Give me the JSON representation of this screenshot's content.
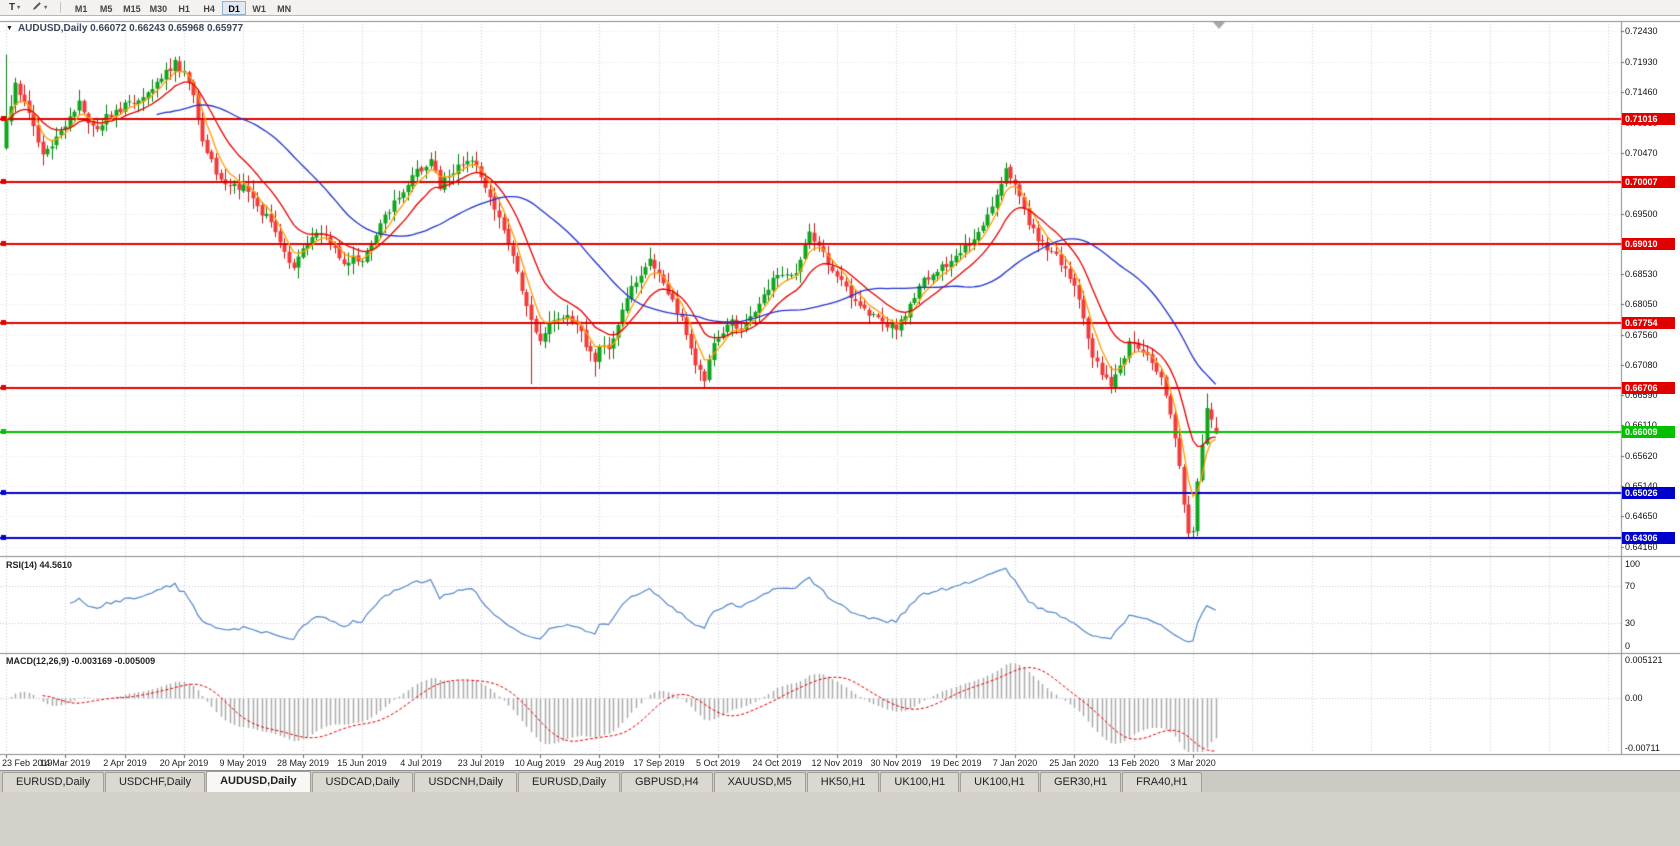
{
  "toolbar": {
    "text_tool": "T",
    "timeframes": [
      "M1",
      "M5",
      "M15",
      "M30",
      "H1",
      "H4",
      "D1",
      "W1",
      "MN"
    ],
    "active_timeframe": "D1"
  },
  "chart": {
    "title_line": "AUDUSD,Daily 0.66072 0.66243 0.65968 0.65977",
    "price_axis_labels": [
      "0.72430",
      "0.71930",
      "0.71460",
      "0.70960",
      "0.70470",
      "0.69990",
      "0.69500",
      "0.69020",
      "0.68530",
      "0.68050",
      "0.67560",
      "0.67080",
      "0.66590",
      "0.66110",
      "0.65620",
      "0.65140",
      "0.64650",
      "0.64160"
    ],
    "colors": {
      "bg": "#ffffff",
      "up": "#10a51c",
      "up_border": "#0b7d13",
      "down": "#f23b3b",
      "down_border": "#c51d1d",
      "grid_v": "#cfcfcf",
      "grid_h": "#e8e8e8",
      "frame": "#8c8c8c",
      "panel_level": "#c6c6dd"
    },
    "levels": [
      {
        "price": 0.71016,
        "label": "0.71016",
        "color": "#e00000"
      },
      {
        "price": 0.70007,
        "label": "0.70007",
        "color": "#e00000"
      },
      {
        "price": 0.6901,
        "label": "0.69010",
        "color": "#e00000"
      },
      {
        "price": 0.67754,
        "label": "0.67754",
        "color": "#e00000"
      },
      {
        "price": 0.66706,
        "label": "0.66706",
        "color": "#e00000"
      },
      {
        "price": 0.66009,
        "label": "0.66009",
        "color": "#00c000"
      },
      {
        "price": 0.65026,
        "label": "0.65026",
        "color": "#0000cc"
      },
      {
        "price": 0.64306,
        "label": "0.64306",
        "color": "#0000cc"
      }
    ]
  },
  "chart_data": {
    "type": "candlestick",
    "symbol": "AUDUSD",
    "timeframe": "Daily",
    "last_candle": {
      "open": 0.66072,
      "high": 0.66243,
      "low": 0.65968,
      "close": 0.65977
    },
    "y_range": [
      0.6416,
      0.7243
    ],
    "bar_count": 266,
    "bars_per_label": 13,
    "x_labels": [
      "23 Feb 2019",
      "14 Mar 2019",
      "2 Apr 2019",
      "20 Apr 2019",
      "9 May 2019",
      "28 May 2019",
      "15 Jun 2019",
      "4 Jul 2019",
      "23 Jul 2019",
      "10 Aug 2019",
      "29 Aug 2019",
      "17 Sep 2019",
      "5 Oct 2019",
      "24 Oct 2019",
      "12 Nov 2019",
      "30 Nov 2019",
      "19 Dec 2019",
      "7 Jan 2020",
      "25 Jan 2020",
      "13 Feb 2020",
      "3 Mar 2020"
    ],
    "price_anchors": [
      [
        0,
        0.7095
      ],
      [
        2,
        0.7162
      ],
      [
        4,
        0.7128
      ],
      [
        6,
        0.709
      ],
      [
        8,
        0.7042
      ],
      [
        10,
        0.706
      ],
      [
        13,
        0.7092
      ],
      [
        16,
        0.7128
      ],
      [
        19,
        0.7085
      ],
      [
        22,
        0.7105
      ],
      [
        26,
        0.7122
      ],
      [
        30,
        0.714
      ],
      [
        34,
        0.7172
      ],
      [
        37,
        0.7192
      ],
      [
        39,
        0.7176
      ],
      [
        41,
        0.7138
      ],
      [
        43,
        0.7066
      ],
      [
        46,
        0.7016
      ],
      [
        49,
        0.6992
      ],
      [
        52,
        0.6996
      ],
      [
        55,
        0.6962
      ],
      [
        58,
        0.6936
      ],
      [
        61,
        0.6884
      ],
      [
        63,
        0.6866
      ],
      [
        65,
        0.6896
      ],
      [
        68,
        0.6926
      ],
      [
        71,
        0.6906
      ],
      [
        74,
        0.6872
      ],
      [
        76,
        0.6882
      ],
      [
        78,
        0.6876
      ],
      [
        81,
        0.692
      ],
      [
        84,
        0.6958
      ],
      [
        87,
        0.699
      ],
      [
        89,
        0.7012
      ],
      [
        91,
        0.7022
      ],
      [
        93,
        0.7036
      ],
      [
        95,
        0.6996
      ],
      [
        97,
        0.7012
      ],
      [
        100,
        0.7034
      ],
      [
        102,
        0.704
      ],
      [
        104,
        0.7006
      ],
      [
        107,
        0.6962
      ],
      [
        110,
        0.6902
      ],
      [
        112,
        0.6862
      ],
      [
        114,
        0.6802
      ],
      [
        116,
        0.6756
      ],
      [
        117,
        0.6748
      ],
      [
        119,
        0.6782
      ],
      [
        122,
        0.6786
      ],
      [
        125,
        0.6772
      ],
      [
        127,
        0.6742
      ],
      [
        129,
        0.6716
      ],
      [
        130,
        0.6732
      ],
      [
        132,
        0.6736
      ],
      [
        135,
        0.6792
      ],
      [
        138,
        0.6846
      ],
      [
        141,
        0.6872
      ],
      [
        143,
        0.6856
      ],
      [
        146,
        0.6812
      ],
      [
        149,
        0.6762
      ],
      [
        151,
        0.6712
      ],
      [
        153,
        0.6686
      ],
      [
        155,
        0.6742
      ],
      [
        157,
        0.676
      ],
      [
        159,
        0.6778
      ],
      [
        161,
        0.6762
      ],
      [
        164,
        0.6792
      ],
      [
        167,
        0.6832
      ],
      [
        169,
        0.6856
      ],
      [
        172,
        0.6846
      ],
      [
        174,
        0.6876
      ],
      [
        176,
        0.692
      ],
      [
        178,
        0.6896
      ],
      [
        181,
        0.6862
      ],
      [
        183,
        0.6842
      ],
      [
        185,
        0.6812
      ],
      [
        188,
        0.6792
      ],
      [
        191,
        0.6782
      ],
      [
        195,
        0.6766
      ],
      [
        198,
        0.6802
      ],
      [
        201,
        0.6842
      ],
      [
        204,
        0.6856
      ],
      [
        207,
        0.6876
      ],
      [
        209,
        0.6886
      ],
      [
        211,
        0.6902
      ],
      [
        214,
        0.6932
      ],
      [
        217,
        0.6986
      ],
      [
        219,
        0.7022
      ],
      [
        220,
        0.7006
      ],
      [
        222,
        0.698
      ],
      [
        224,
        0.6932
      ],
      [
        227,
        0.6902
      ],
      [
        230,
        0.6882
      ],
      [
        232,
        0.6858
      ],
      [
        234,
        0.6832
      ],
      [
        236,
        0.6782
      ],
      [
        238,
        0.6722
      ],
      [
        240,
        0.6692
      ],
      [
        242,
        0.6674
      ],
      [
        244,
        0.6702
      ],
      [
        246,
        0.6746
      ],
      [
        248,
        0.6736
      ],
      [
        250,
        0.6722
      ],
      [
        252,
        0.6702
      ],
      [
        253,
        0.6682
      ],
      [
        254,
        0.6656
      ],
      [
        255,
        0.6632
      ],
      [
        256,
        0.6596
      ],
      [
        257,
        0.6542
      ],
      [
        258,
        0.6482
      ],
      [
        259,
        0.6442
      ],
      [
        260,
        0.6437
      ],
      [
        261,
        0.6522
      ],
      [
        262,
        0.6582
      ],
      [
        263,
        0.6642
      ],
      [
        264,
        0.6616
      ],
      [
        265,
        0.65977
      ]
    ],
    "key_extremes": [
      {
        "i": 0,
        "h": 0.7205
      },
      {
        "i": 37,
        "h": 0.7201
      },
      {
        "i": 63,
        "l": 0.6865
      },
      {
        "i": 93,
        "h": 0.7048
      },
      {
        "i": 115,
        "l": 0.6677
      },
      {
        "i": 129,
        "l": 0.6689
      },
      {
        "i": 153,
        "l": 0.6671
      },
      {
        "i": 176,
        "h": 0.6929
      },
      {
        "i": 219,
        "h": 0.7032
      },
      {
        "i": 242,
        "l": 0.6662
      },
      {
        "i": 260,
        "l": 0.6433
      },
      {
        "i": 263,
        "h": 0.6662
      }
    ],
    "moving_averages": [
      {
        "type": "ema",
        "period": 5,
        "color": "#ff9d00"
      },
      {
        "type": "ema",
        "period": 13,
        "color": "#e60000"
      },
      {
        "type": "sma",
        "period": 34,
        "color": "#2233cc"
      }
    ],
    "indicators": {
      "rsi": {
        "label_text": "RSI(14) 44.5610",
        "period": 14,
        "levels": [
          70,
          30
        ],
        "range": [
          0,
          100
        ],
        "axis_labels": [
          "100",
          "70",
          "30",
          "0"
        ],
        "color": "#5588cc"
      },
      "macd": {
        "label_text": "MACD(12,26,9) -0.003169 -0.005009",
        "fast": 12,
        "slow": 26,
        "signal": 9,
        "range": [
          -0.00711,
          0.005121
        ],
        "axis_labels": [
          "0.005121",
          "0.00",
          "-0.00711"
        ],
        "histogram_color": "#aaaaaa",
        "signal_color": "#e60000"
      }
    }
  },
  "tabs": {
    "items": [
      "EURUSD,Daily",
      "USDCHF,Daily",
      "AUDUSD,Daily",
      "USDCAD,Daily",
      "USDCNH,Daily",
      "EURUSD,Daily",
      "GBPUSD,H4",
      "XAUUSD,M5",
      "HK50,H1",
      "UK100,H1",
      "UK100,H1",
      "GER30,H1",
      "FRA40,H1"
    ],
    "active_index": 2
  }
}
